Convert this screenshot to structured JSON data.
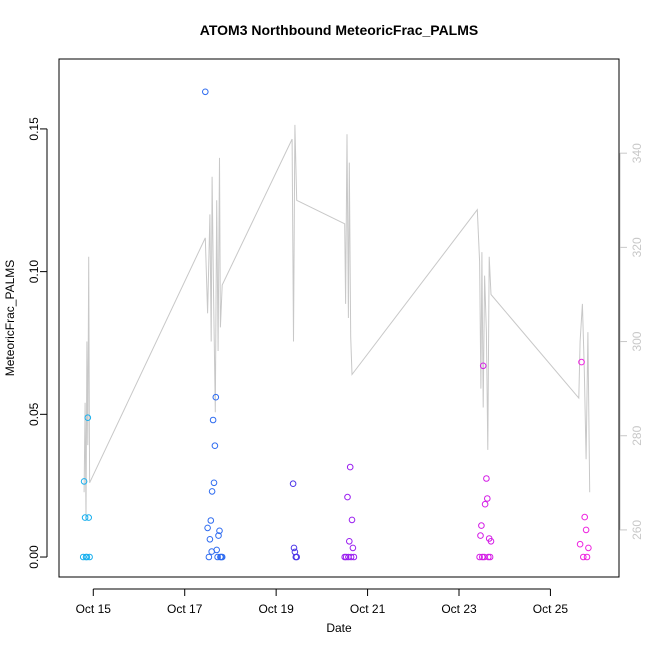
{
  "chart_data": {
    "type": "scatter",
    "title": "ATOM3 Northbound MeteoricFrac_PALMS",
    "xlabel": "Date",
    "ylabel": "MeteoricFrac_PALMS",
    "xlim": [
      14.25,
      26.5
    ],
    "ylim": [
      -0.007,
      0.1745
    ],
    "y2lim": [
      250,
      360
    ],
    "x_ticks": [
      {
        "value": 15,
        "label": "Oct 15"
      },
      {
        "value": 17,
        "label": "Oct 17"
      },
      {
        "value": 19,
        "label": "Oct 19"
      },
      {
        "value": 21,
        "label": "Oct 21"
      },
      {
        "value": 23,
        "label": "Oct 23"
      },
      {
        "value": 25,
        "label": "Oct 25"
      }
    ],
    "y_ticks": [
      {
        "value": 0.0,
        "label": "0.00"
      },
      {
        "value": 0.05,
        "label": "0.05"
      },
      {
        "value": 0.1,
        "label": "0.10"
      },
      {
        "value": 0.15,
        "label": "0.15"
      }
    ],
    "y2_ticks": [
      {
        "value": 260,
        "label": "260"
      },
      {
        "value": 280,
        "label": "280"
      },
      {
        "value": 300,
        "label": "300"
      },
      {
        "value": 320,
        "label": "320"
      },
      {
        "value": 340,
        "label": "340"
      }
    ],
    "colors": {
      "line": "#c8c8c8",
      "axis": "#000000",
      "right_axis": "#c8c8c8",
      "flight_colors": [
        "#1ab0ee",
        "#2f6cf0",
        "#4b35e8",
        "#9a1ef0",
        "#d41ee6",
        "#ee22e0"
      ]
    },
    "line_series": [
      [
        14.8,
        268
      ],
      [
        14.82,
        287
      ],
      [
        14.84,
        262
      ],
      [
        14.86,
        300
      ],
      [
        14.88,
        278
      ],
      [
        14.9,
        318
      ],
      [
        14.92,
        270
      ],
      [
        17.45,
        322
      ],
      [
        17.5,
        306
      ],
      [
        17.55,
        327
      ],
      [
        17.58,
        300
      ],
      [
        17.6,
        335
      ],
      [
        17.63,
        311
      ],
      [
        17.67,
        285
      ],
      [
        17.7,
        330
      ],
      [
        17.73,
        298
      ],
      [
        17.76,
        339
      ],
      [
        17.78,
        303
      ],
      [
        17.82,
        312
      ],
      [
        19.35,
        343
      ],
      [
        19.38,
        300
      ],
      [
        19.41,
        346
      ],
      [
        19.45,
        330
      ],
      [
        20.5,
        325
      ],
      [
        20.52,
        308
      ],
      [
        20.55,
        344
      ],
      [
        20.58,
        305
      ],
      [
        20.6,
        338
      ],
      [
        20.63,
        301
      ],
      [
        20.66,
        293
      ],
      [
        23.4,
        328
      ],
      [
        23.45,
        317
      ],
      [
        23.48,
        290
      ],
      [
        23.5,
        319
      ],
      [
        23.53,
        286
      ],
      [
        23.56,
        314
      ],
      [
        23.6,
        302
      ],
      [
        23.63,
        277
      ],
      [
        23.66,
        318
      ],
      [
        23.7,
        310
      ],
      [
        25.62,
        288
      ],
      [
        25.65,
        300
      ],
      [
        25.7,
        308
      ],
      [
        25.74,
        294
      ],
      [
        25.78,
        275
      ],
      [
        25.82,
        302
      ],
      [
        25.86,
        268
      ]
    ],
    "series": [
      {
        "points": [
          [
            14.78,
            0.0
          ],
          [
            14.8,
            0.0265
          ],
          [
            14.82,
            0.0138
          ],
          [
            14.84,
            0.0
          ],
          [
            14.86,
            0.0
          ],
          [
            14.88,
            0.0488
          ],
          [
            14.9,
            0.0138
          ],
          [
            14.92,
            0.0
          ]
        ]
      },
      {
        "points": [
          [
            17.45,
            0.163
          ],
          [
            17.5,
            0.0102
          ],
          [
            17.53,
            0.0
          ],
          [
            17.55,
            0.0062
          ],
          [
            17.57,
            0.0128
          ],
          [
            17.59,
            0.0019
          ],
          [
            17.6,
            0.023
          ],
          [
            17.62,
            0.048
          ],
          [
            17.64,
            0.026
          ],
          [
            17.66,
            0.039
          ],
          [
            17.68,
            0.056
          ],
          [
            17.7,
            0.0025
          ],
          [
            17.72,
            0.0
          ],
          [
            17.74,
            0.0075
          ],
          [
            17.76,
            0.0092
          ],
          [
            17.78,
            0.0
          ],
          [
            17.8,
            0.0
          ],
          [
            17.82,
            0.0
          ]
        ]
      },
      {
        "points": [
          [
            19.37,
            0.0257
          ],
          [
            19.39,
            0.0032
          ],
          [
            19.41,
            0.0018
          ],
          [
            19.43,
            0.0
          ],
          [
            19.45,
            0.0
          ]
        ]
      },
      {
        "points": [
          [
            20.5,
            0.0
          ],
          [
            20.53,
            0.0
          ],
          [
            20.56,
            0.021
          ],
          [
            20.58,
            0.0
          ],
          [
            20.6,
            0.0055
          ],
          [
            20.62,
            0.0315
          ],
          [
            20.64,
            0.0
          ],
          [
            20.66,
            0.013
          ],
          [
            20.68,
            0.0032
          ],
          [
            20.7,
            0.0
          ]
        ]
      },
      {
        "points": [
          [
            23.45,
            0.0
          ],
          [
            23.47,
            0.0075
          ],
          [
            23.49,
            0.011
          ],
          [
            23.51,
            0.0
          ],
          [
            23.53,
            0.067
          ],
          [
            23.55,
            0.0
          ],
          [
            23.57,
            0.0185
          ],
          [
            23.6,
            0.0275
          ],
          [
            23.62,
            0.0205
          ],
          [
            23.64,
            0.0
          ],
          [
            23.66,
            0.0065
          ],
          [
            23.68,
            0.0
          ],
          [
            23.7,
            0.0055
          ]
        ]
      },
      {
        "points": [
          [
            25.65,
            0.0045
          ],
          [
            25.68,
            0.0683
          ],
          [
            25.72,
            0.0
          ],
          [
            25.75,
            0.014
          ],
          [
            25.78,
            0.0095
          ],
          [
            25.8,
            0.0
          ],
          [
            25.83,
            0.0032
          ]
        ]
      }
    ]
  }
}
